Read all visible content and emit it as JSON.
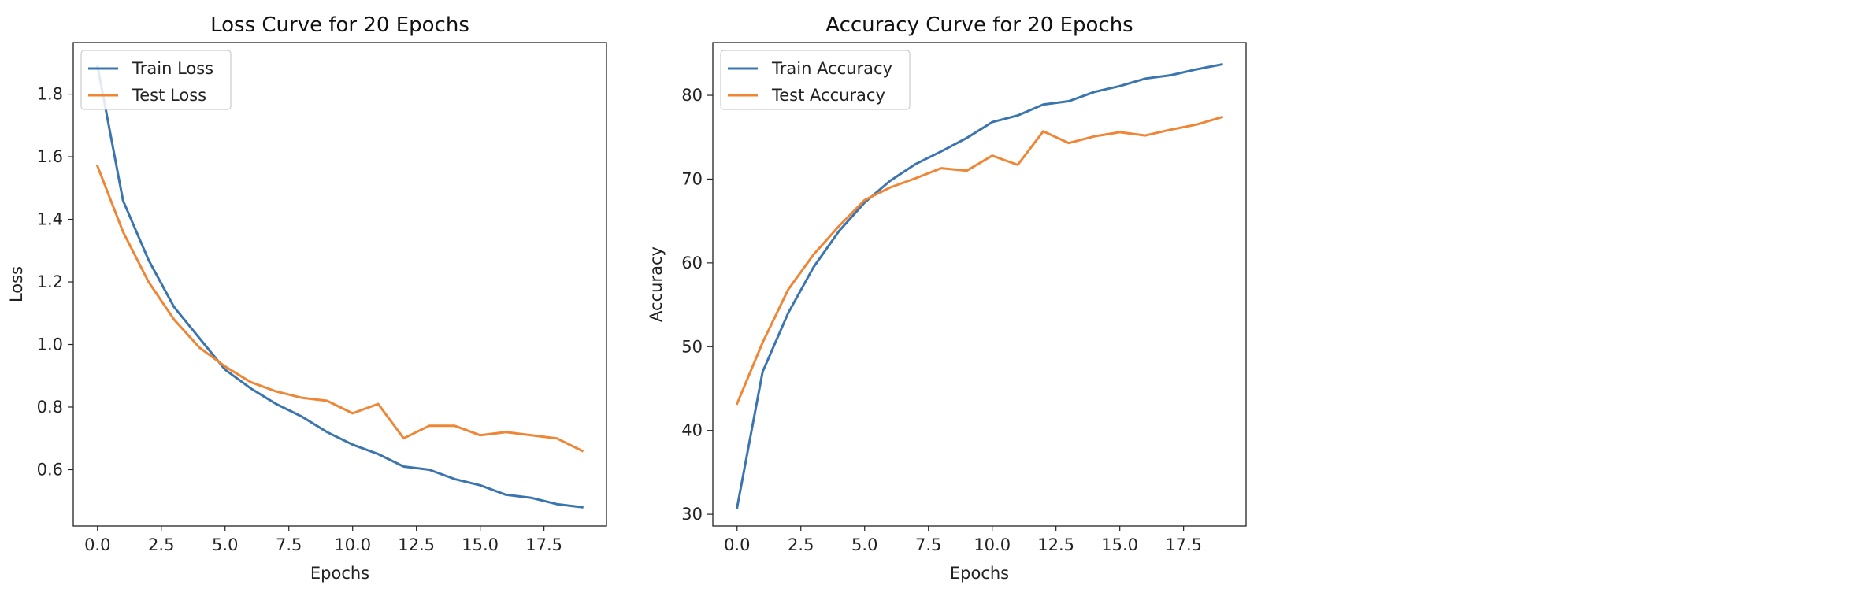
{
  "chart_data": [
    {
      "type": "line",
      "title": "Loss Curve for 20 Epochs",
      "xlabel": "Epochs",
      "ylabel": "Loss",
      "xlim": [
        -0.95,
        19.95
      ],
      "ylim": [
        0.42,
        1.965
      ],
      "xticks": [
        0,
        2.5,
        5,
        7.5,
        10,
        12.5,
        15,
        17.5
      ],
      "xtick_labels": [
        "0.0",
        "2.5",
        "5.0",
        "7.5",
        "10.0",
        "12.5",
        "15.0",
        "17.5"
      ],
      "yticks": [
        0.6,
        0.8,
        1.0,
        1.2,
        1.4,
        1.6,
        1.8
      ],
      "ytick_labels": [
        "0.6",
        "0.8",
        "1.0",
        "1.2",
        "1.4",
        "1.6",
        "1.8"
      ],
      "legend_position": "top-left",
      "grid": false,
      "x": [
        0,
        1,
        2,
        3,
        4,
        5,
        6,
        7,
        8,
        9,
        10,
        11,
        12,
        13,
        14,
        15,
        16,
        17,
        18,
        19
      ],
      "series": [
        {
          "name": "Train Loss",
          "color": "#3b75af",
          "values": [
            1.89,
            1.46,
            1.27,
            1.12,
            1.02,
            0.92,
            0.86,
            0.81,
            0.77,
            0.72,
            0.68,
            0.65,
            0.61,
            0.6,
            0.57,
            0.55,
            0.52,
            0.51,
            0.49,
            0.48
          ]
        },
        {
          "name": "Test Loss",
          "color": "#ef8636",
          "values": [
            1.57,
            1.36,
            1.2,
            1.08,
            0.99,
            0.93,
            0.88,
            0.85,
            0.83,
            0.82,
            0.78,
            0.81,
            0.7,
            0.74,
            0.74,
            0.71,
            0.72,
            0.71,
            0.7,
            0.66
          ]
        }
      ]
    },
    {
      "type": "line",
      "title": "Accuracy Curve for 20 Epochs",
      "xlabel": "Epochs",
      "ylabel": "Accuracy",
      "xlim": [
        -0.95,
        19.95
      ],
      "ylim": [
        28.6,
        86.3
      ],
      "xticks": [
        0,
        2.5,
        5,
        7.5,
        10,
        12.5,
        15,
        17.5
      ],
      "xtick_labels": [
        "0.0",
        "2.5",
        "5.0",
        "7.5",
        "10.0",
        "12.5",
        "15.0",
        "17.5"
      ],
      "yticks": [
        30,
        40,
        50,
        60,
        70,
        80
      ],
      "ytick_labels": [
        "30",
        "40",
        "50",
        "60",
        "70",
        "80"
      ],
      "legend_position": "top-left",
      "grid": false,
      "x": [
        0,
        1,
        2,
        3,
        4,
        5,
        6,
        7,
        8,
        9,
        10,
        11,
        12,
        13,
        14,
        15,
        16,
        17,
        18,
        19
      ],
      "series": [
        {
          "name": "Train Accuracy",
          "color": "#3b75af",
          "values": [
            30.8,
            47.0,
            54.0,
            59.5,
            63.8,
            67.2,
            69.8,
            71.8,
            73.3,
            74.9,
            76.8,
            77.6,
            78.9,
            79.3,
            80.4,
            81.1,
            82.0,
            82.4,
            83.1,
            83.7
          ]
        },
        {
          "name": "Test Accuracy",
          "color": "#ef8636",
          "values": [
            43.2,
            50.5,
            56.8,
            61.0,
            64.4,
            67.5,
            69.0,
            70.1,
            71.3,
            71.0,
            72.8,
            71.7,
            75.7,
            74.3,
            75.1,
            75.6,
            75.2,
            75.9,
            76.5,
            77.4
          ]
        }
      ]
    }
  ]
}
